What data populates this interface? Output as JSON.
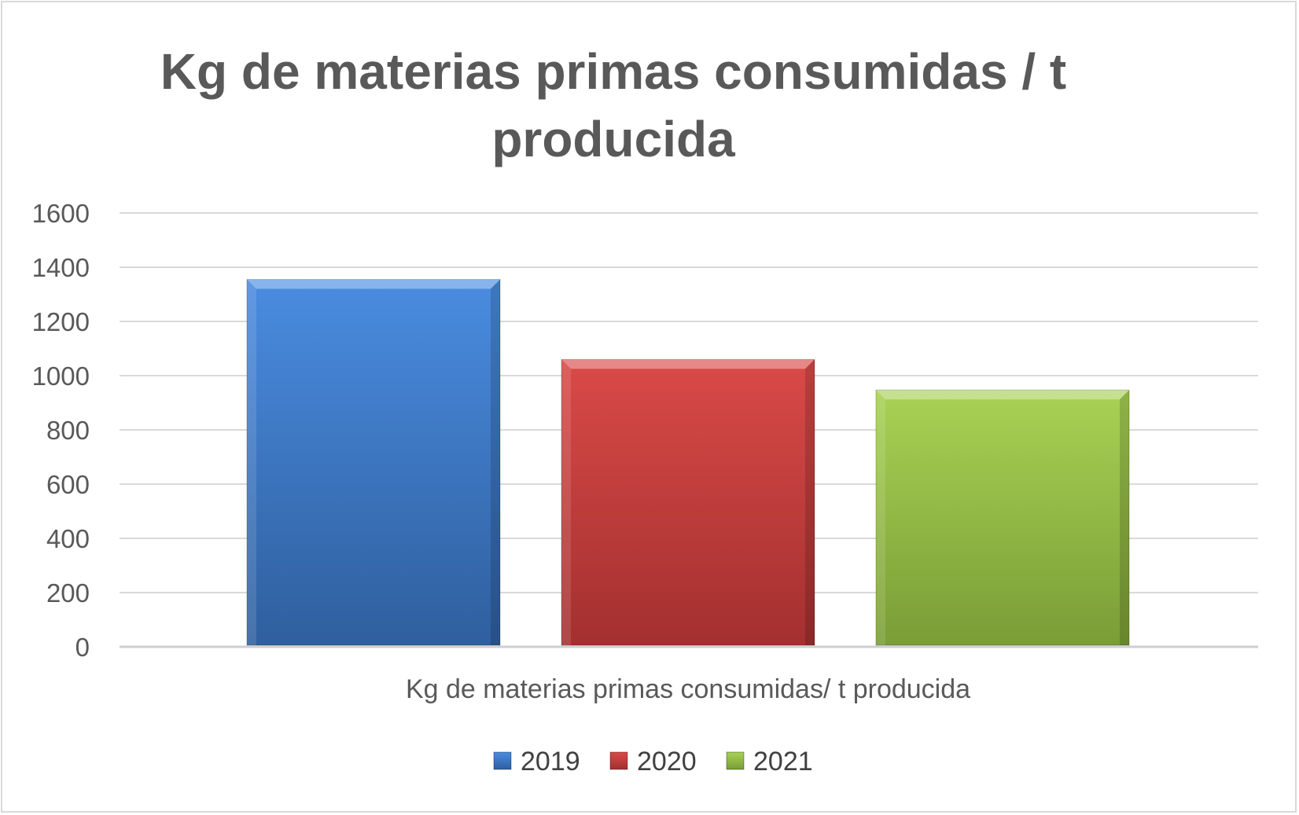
{
  "chart_data": {
    "type": "bar",
    "title": "Kg de materias primas consumidas / t producida",
    "categories": [
      "Kg de materias primas consumidas/ t producida"
    ],
    "series": [
      {
        "name": "2019",
        "values": [
          1355
        ],
        "color": "#3f7fd0"
      },
      {
        "name": "2020",
        "values": [
          1060
        ],
        "color": "#c93b3a"
      },
      {
        "name": "2021",
        "values": [
          947
        ],
        "color": "#97bf3f"
      }
    ],
    "ylim": [
      0,
      1600
    ],
    "yticks": [
      "0",
      "200",
      "400",
      "600",
      "800",
      "1000",
      "1200",
      "1400",
      "1600"
    ],
    "grid": true,
    "legend": "bottom"
  }
}
